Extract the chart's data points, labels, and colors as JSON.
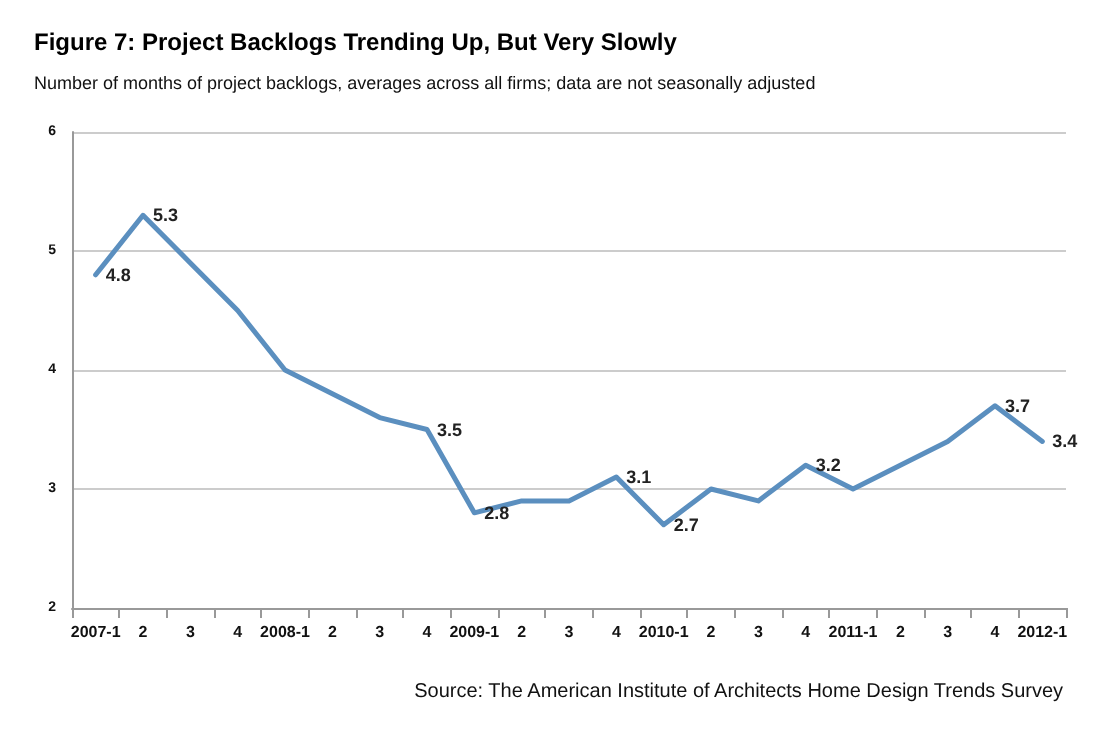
{
  "chart_data": {
    "type": "line",
    "title": "Figure 7: Project Backlogs Trending Up, But Very Slowly",
    "subtitle": "Number of months of project backlogs, averages across all firms; data are not seasonally adjusted",
    "categories": [
      "2007-1",
      "2",
      "3",
      "4",
      "2008-1",
      "2",
      "3",
      "4",
      "2009-1",
      "2",
      "3",
      "4",
      "2010-1",
      "2",
      "3",
      "4",
      "2011-1",
      "2",
      "3",
      "4",
      "2012-1"
    ],
    "series": [
      {
        "color": "#5b8fbf",
        "values": [
          4.8,
          5.3,
          4.9,
          4.5,
          4.0,
          3.8,
          3.6,
          3.5,
          2.8,
          2.9,
          2.9,
          3.1,
          2.7,
          3.0,
          2.9,
          3.2,
          3.0,
          3.2,
          3.4,
          3.7,
          3.4
        ],
        "value_labels": [
          "4.8",
          "5.3",
          null,
          null,
          null,
          null,
          null,
          "3.5",
          "2.8",
          null,
          null,
          "3.1",
          "2.7",
          null,
          null,
          "3.2",
          null,
          null,
          null,
          "3.7",
          "3.4"
        ]
      }
    ],
    "ylim": [
      2,
      6
    ],
    "yticks": [
      2,
      3,
      4,
      5,
      6
    ],
    "grid": "y",
    "marker": "none",
    "line_style": "solid",
    "annotations": [
      "Source: The American Institute of Architects Home Design Trends Survey"
    ]
  }
}
